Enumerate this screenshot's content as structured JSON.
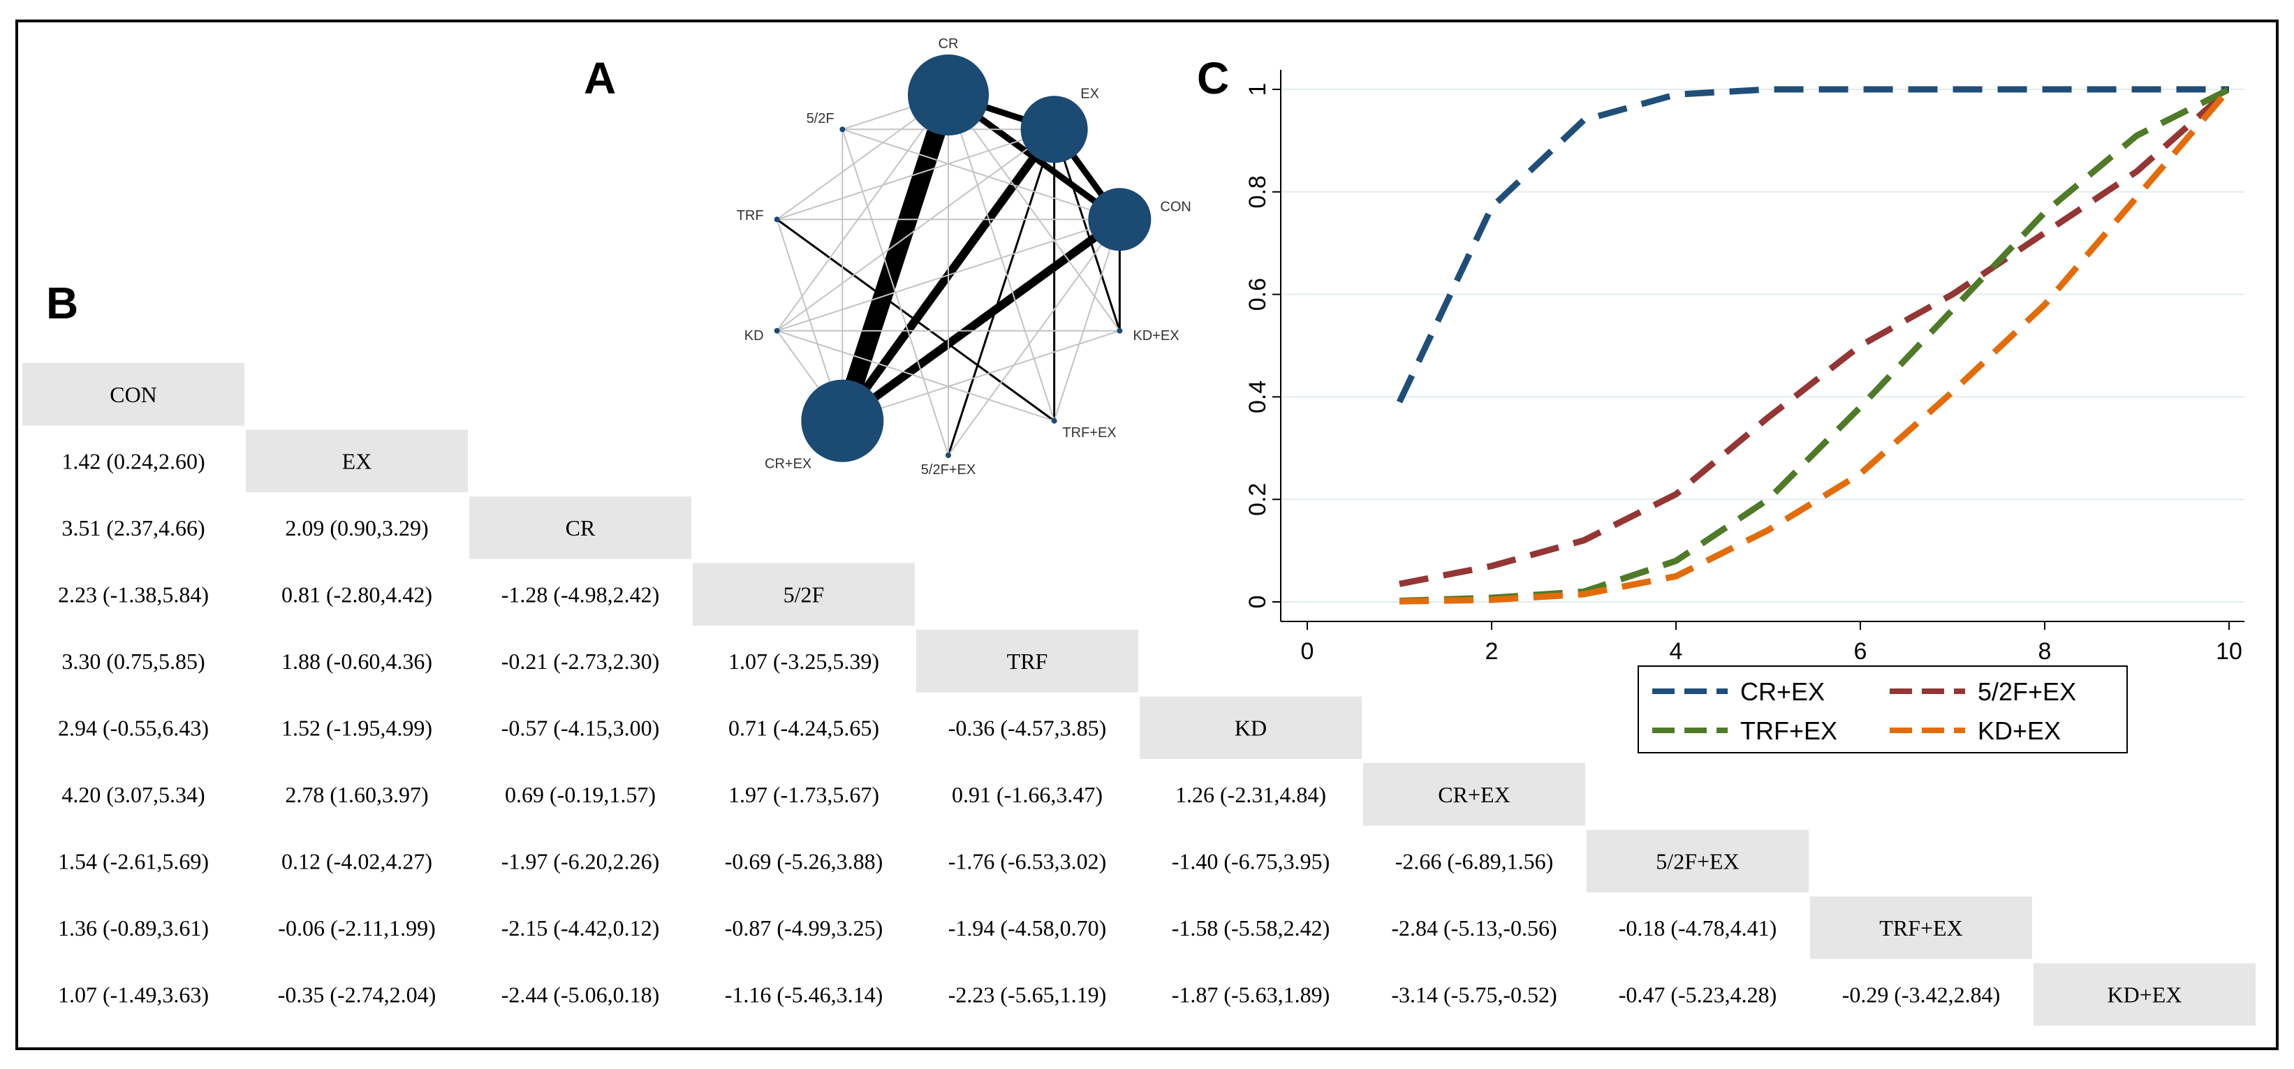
{
  "panels": {
    "a": "A",
    "b": "B",
    "c": "C"
  },
  "treatments": [
    "CON",
    "EX",
    "CR",
    "5/2F",
    "TRF",
    "KD",
    "CR+EX",
    "5/2F+EX",
    "TRF+EX",
    "KD+EX"
  ],
  "league_table": {
    "rows": [
      [],
      [
        "1.42 (0.24,2.60)"
      ],
      [
        "3.51 (2.37,4.66)",
        "2.09 (0.90,3.29)"
      ],
      [
        "2.23 (-1.38,5.84)",
        "0.81 (-2.80,4.42)",
        "-1.28 (-4.98,2.42)"
      ],
      [
        "3.30 (0.75,5.85)",
        "1.88 (-0.60,4.36)",
        "-0.21 (-2.73,2.30)",
        "1.07 (-3.25,5.39)"
      ],
      [
        "2.94 (-0.55,6.43)",
        "1.52 (-1.95,4.99)",
        "-0.57 (-4.15,3.00)",
        "0.71 (-4.24,5.65)",
        "-0.36 (-4.57,3.85)"
      ],
      [
        "4.20 (3.07,5.34)",
        "2.78 (1.60,3.97)",
        "0.69 (-0.19,1.57)",
        "1.97 (-1.73,5.67)",
        "0.91 (-1.66,3.47)",
        "1.26 (-2.31,4.84)"
      ],
      [
        "1.54 (-2.61,5.69)",
        "0.12 (-4.02,4.27)",
        "-1.97 (-6.20,2.26)",
        "-0.69 (-5.26,3.88)",
        "-1.76 (-6.53,3.02)",
        "-1.40 (-6.75,3.95)",
        "-2.66 (-6.89,1.56)"
      ],
      [
        "1.36 (-0.89,3.61)",
        "-0.06 (-2.11,1.99)",
        "-2.15 (-4.42,0.12)",
        "-0.87 (-4.99,3.25)",
        "-1.94 (-4.58,0.70)",
        "-1.58 (-5.58,2.42)",
        "-2.84 (-5.13,-0.56)",
        "-0.18 (-4.78,4.41)"
      ],
      [
        "1.07 (-1.49,3.63)",
        "-0.35 (-2.74,2.04)",
        "-2.44 (-5.06,0.18)",
        "-1.16 (-5.46,3.14)",
        "-2.23 (-5.65,1.19)",
        "-1.87 (-5.63,1.89)",
        "-3.14 (-5.75,-0.52)",
        "-0.47 (-5.23,4.28)",
        "-0.29 (-3.42,2.84)"
      ]
    ]
  },
  "network": {
    "nodes": [
      {
        "id": "CR",
        "label": "CR",
        "size": 5.8
      },
      {
        "id": "EX",
        "label": "EX",
        "size": 4.8
      },
      {
        "id": "CON",
        "label": "CON",
        "size": 4.5
      },
      {
        "id": "KD+EX",
        "label": "KD+EX",
        "size": 0.4
      },
      {
        "id": "TRF+EX",
        "label": "TRF+EX",
        "size": 0.4
      },
      {
        "id": "5/2F+EX",
        "label": "5/2F+EX",
        "size": 0.4
      },
      {
        "id": "CR+EX",
        "label": "CR+EX",
        "size": 5.9
      },
      {
        "id": "KD",
        "label": "KD",
        "size": 0.4
      },
      {
        "id": "TRF",
        "label": "TRF",
        "size": 0.4
      },
      {
        "id": "5/2F",
        "label": "5/2F",
        "size": 0.4
      }
    ],
    "edges": [
      {
        "from": "CR+EX",
        "to": "CR",
        "studies": 9
      },
      {
        "from": "CR+EX",
        "to": "EX",
        "studies": 4
      },
      {
        "from": "CR+EX",
        "to": "CON",
        "studies": 4
      },
      {
        "from": "CR",
        "to": "EX",
        "studies": 3
      },
      {
        "from": "CR",
        "to": "CON",
        "studies": 3
      },
      {
        "from": "EX",
        "to": "CON",
        "studies": 3
      },
      {
        "from": "TRF",
        "to": "TRF+EX",
        "studies": 1
      },
      {
        "from": "TRF+EX",
        "to": "EX",
        "studies": 1
      },
      {
        "from": "KD+EX",
        "to": "EX",
        "studies": 1
      },
      {
        "from": "KD+EX",
        "to": "CON",
        "studies": 1
      },
      {
        "from": "5/2F+EX",
        "to": "EX",
        "studies": 1
      },
      {
        "from": "5/2F",
        "to": "CR",
        "studies": 0.3
      },
      {
        "from": "5/2F",
        "to": "EX",
        "studies": 0.3
      },
      {
        "from": "5/2F",
        "to": "CON",
        "studies": 0.3
      },
      {
        "from": "5/2F",
        "to": "5/2F+EX",
        "studies": 0.3
      },
      {
        "from": "TRF",
        "to": "CR",
        "studies": 0.3
      },
      {
        "from": "TRF",
        "to": "EX",
        "studies": 0.3
      },
      {
        "from": "TRF",
        "to": "CON",
        "studies": 0.3
      },
      {
        "from": "KD",
        "to": "CR",
        "studies": 0.3
      },
      {
        "from": "KD",
        "to": "EX",
        "studies": 0.3
      },
      {
        "from": "KD",
        "to": "CON",
        "studies": 0.3
      },
      {
        "from": "KD",
        "to": "KD+EX",
        "studies": 0.3
      },
      {
        "from": "KD",
        "to": "TRF+EX",
        "studies": 0.3
      },
      {
        "from": "CR+EX",
        "to": "5/2F",
        "studies": 0.3
      },
      {
        "from": "CR+EX",
        "to": "TRF",
        "studies": 0.3
      },
      {
        "from": "CR+EX",
        "to": "KD",
        "studies": 0.3
      },
      {
        "from": "CR+EX",
        "to": "KD+EX",
        "studies": 0.3
      },
      {
        "from": "5/2F+EX",
        "to": "CON",
        "studies": 0.3
      },
      {
        "from": "5/2F+EX",
        "to": "CR",
        "studies": 0.3
      },
      {
        "from": "TRF+EX",
        "to": "CON",
        "studies": 0.3
      },
      {
        "from": "TRF+EX",
        "to": "CR",
        "studies": 0.3
      },
      {
        "from": "KD+EX",
        "to": "CR",
        "studies": 0.3
      }
    ]
  },
  "chart_data": {
    "type": "line",
    "title": "",
    "xlabel": "",
    "ylabel": "",
    "xlim": [
      0,
      10
    ],
    "ylim": [
      0,
      1
    ],
    "xticks": [
      "0",
      "2",
      "4",
      "6",
      "8",
      "10"
    ],
    "yticks": [
      "0",
      "0.2",
      "0.4",
      "0.6",
      "0.8",
      "1"
    ],
    "x": [
      1,
      2,
      3,
      4,
      5,
      6,
      7,
      8,
      9,
      10
    ],
    "series": [
      {
        "name": "CR+EX",
        "color": "#1f4e79",
        "values": [
          0.39,
          0.77,
          0.94,
          0.99,
          1.0,
          1.0,
          1.0,
          1.0,
          1.0,
          1.0
        ]
      },
      {
        "name": "5/2F+EX",
        "color": "#943634",
        "values": [
          0.035,
          0.07,
          0.12,
          0.21,
          0.36,
          0.5,
          0.6,
          0.72,
          0.84,
          1.0
        ]
      },
      {
        "name": "TRF+EX",
        "color": "#4f7a28",
        "values": [
          0.002,
          0.008,
          0.02,
          0.08,
          0.2,
          0.38,
          0.57,
          0.76,
          0.91,
          1.0
        ]
      },
      {
        "name": "KD+EX",
        "color": "#e36c09",
        "values": [
          0.001,
          0.004,
          0.015,
          0.05,
          0.14,
          0.25,
          0.41,
          0.58,
          0.79,
          1.0
        ]
      }
    ],
    "legend_position": "bottom"
  }
}
